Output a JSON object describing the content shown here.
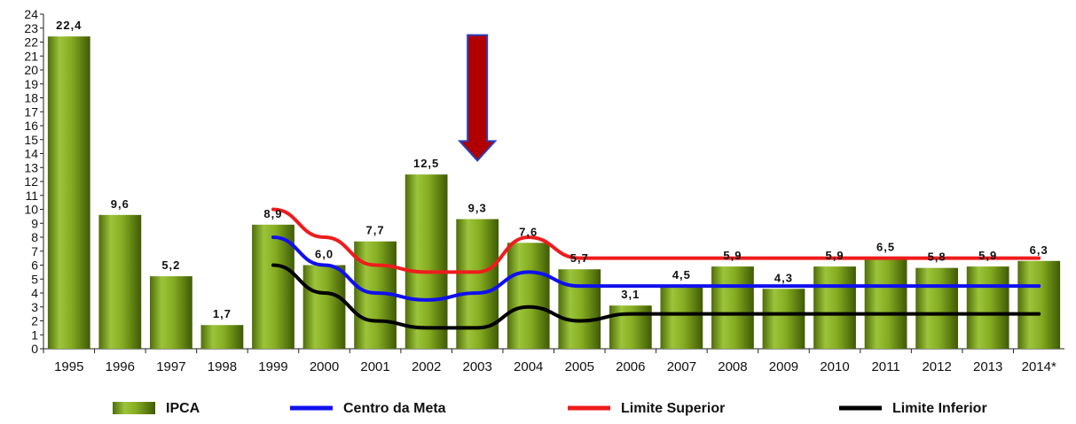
{
  "chart_data": {
    "type": "bar",
    "title": "",
    "xlabel": "",
    "ylabel": "",
    "ylim": [
      0,
      24
    ],
    "yticks": [
      0,
      1,
      2,
      3,
      4,
      5,
      6,
      7,
      8,
      9,
      10,
      11,
      12,
      13,
      14,
      15,
      16,
      17,
      18,
      19,
      20,
      21,
      22,
      23,
      24
    ],
    "grid": false,
    "legend_position": "bottom",
    "categories": [
      "1995",
      "1996",
      "1997",
      "1998",
      "1999",
      "2000",
      "2001",
      "2002",
      "2003",
      "2004",
      "2005",
      "2006",
      "2007",
      "2008",
      "2009",
      "2010",
      "2011",
      "2012",
      "2013",
      "2014*"
    ],
    "series": [
      {
        "name": "IPCA",
        "kind": "bar",
        "color": "#7ea41c",
        "values": [
          22.4,
          9.6,
          5.2,
          1.7,
          8.9,
          6.0,
          7.7,
          12.5,
          9.3,
          7.6,
          5.7,
          3.1,
          4.5,
          5.9,
          4.3,
          5.9,
          6.5,
          5.8,
          5.9,
          6.3
        ],
        "labels": [
          "22,4",
          "9,6",
          "5,2",
          "1,7",
          "8,9",
          "6,0",
          "7,7",
          "12,5",
          "9,3",
          "7,6",
          "5,7",
          "3,1",
          "4,5",
          "5,9",
          "4,3",
          "5,9",
          "6,5",
          "5,8",
          "5,9",
          "6,3"
        ]
      },
      {
        "name": "Centro da Meta",
        "kind": "line",
        "color": "#1010ee",
        "values": [
          null,
          null,
          null,
          null,
          8,
          6,
          4,
          3.5,
          4,
          5.5,
          4.5,
          4.5,
          4.5,
          4.5,
          4.5,
          4.5,
          4.5,
          4.5,
          4.5,
          4.5
        ]
      },
      {
        "name": "Limite Superior",
        "kind": "line",
        "color": "#ee1c1c",
        "values": [
          null,
          null,
          null,
          null,
          10,
          8,
          6,
          5.5,
          5.5,
          8,
          6.5,
          6.5,
          6.5,
          6.5,
          6.5,
          6.5,
          6.5,
          6.5,
          6.5,
          6.5
        ]
      },
      {
        "name": "Limite Inferior",
        "kind": "line",
        "color": "#000000",
        "values": [
          null,
          null,
          null,
          null,
          6,
          4,
          2,
          1.5,
          1.5,
          3,
          2,
          2.5,
          2.5,
          2.5,
          2.5,
          2.5,
          2.5,
          2.5,
          2.5,
          2.5
        ]
      }
    ],
    "annotations": [
      {
        "type": "arrow-down",
        "color": "#b00000",
        "x_category": "2003",
        "y_from": 22.5,
        "y_to": 13.5
      }
    ]
  }
}
